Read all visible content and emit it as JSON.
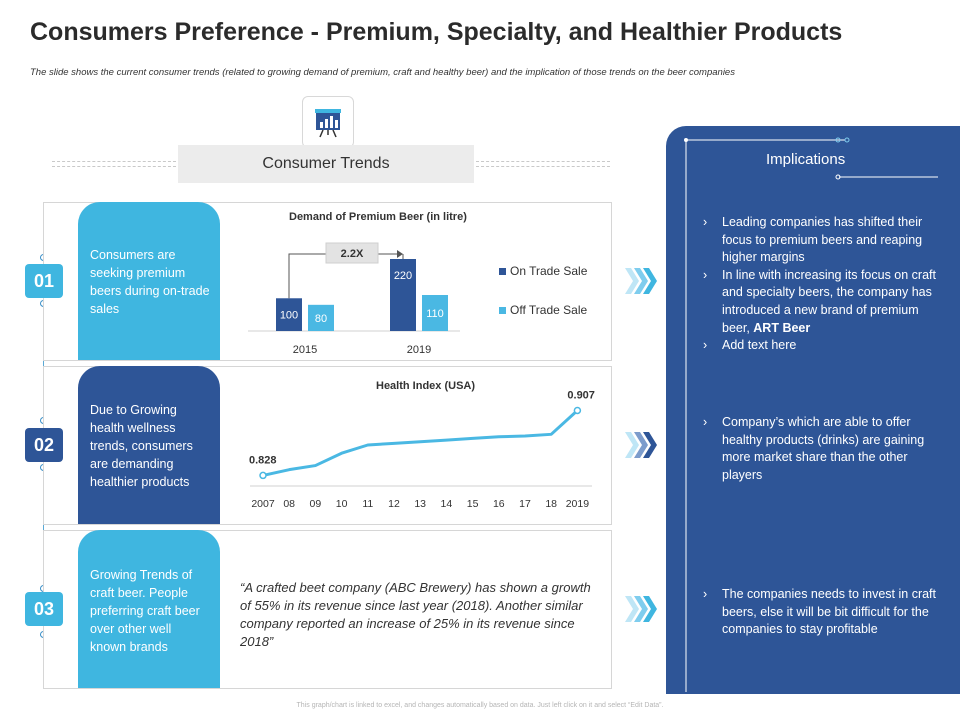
{
  "header": {
    "title": "Consumers Preference - Premium, Specialty, and Healthier Products",
    "subtitle": "The slide shows the current consumer trends (related to growing demand of premium, craft and healthy beer) and the implication of those trends on the beer companies"
  },
  "trends": {
    "heading": "Consumer Trends",
    "icon": "presentation-board-icon"
  },
  "rows": [
    {
      "badge": "01",
      "text": "Consumers are seeking premium beers during on-trade sales"
    },
    {
      "badge": "02",
      "text": "Due to Growing health wellness trends, consumers are demanding healthier products"
    },
    {
      "badge": "03",
      "text": "Growing Trends of craft beer. People preferring craft beer over other well known brands"
    }
  ],
  "quote": "“A crafted beet company (ABC Brewery) has shown a growth of 55% in its revenue since last year (2018). Another similar company reported an increase of 25% in its revenue since 2018”",
  "implications": {
    "title": "Implications",
    "group1": [
      {
        "text": "Leading companies has shifted their focus to premium beers and reaping higher margins"
      },
      {
        "text": "In line with increasing its focus on craft and specialty beers, the company has introduced a new brand of premium beer, ",
        "bold": "ART Beer"
      },
      {
        "text": "Add text here"
      }
    ],
    "group2": [
      {
        "text": "Company’s which are able to offer healthy products (drinks) are gaining more market share than the other players"
      }
    ],
    "group3": [
      {
        "text": "The companies needs to invest in craft beers, else it will be bit difficult for the companies to stay profitable"
      }
    ]
  },
  "footer": "This graph/chart is linked to excel, and changes automatically based on data. Just left click on it and select “Edit Data”.",
  "colors": {
    "light_blue": "#3fb6e0",
    "dark_blue": "#2e5597",
    "bar_on_trade": "#2e5597",
    "bar_off_trade": "#4ab8e3",
    "line": "#4ab8e3"
  },
  "chart_data": [
    {
      "type": "bar",
      "title": "Demand of Premium Beer (in litre)",
      "categories": [
        "2015",
        "2019"
      ],
      "series": [
        {
          "name": "On Trade Sale",
          "values": [
            100,
            220
          ]
        },
        {
          "name": "Off Trade Sale",
          "values": [
            80,
            110
          ]
        }
      ],
      "annotations": [
        "2.2X"
      ],
      "legend": "right",
      "grid": false
    },
    {
      "type": "line",
      "title": "Health Index (USA)",
      "x": [
        "2007",
        "08",
        "09",
        "10",
        "11",
        "12",
        "13",
        "14",
        "15",
        "16",
        "17",
        "18",
        "2019"
      ],
      "values": [
        0.828,
        0.835,
        0.84,
        0.855,
        0.865,
        0.867,
        0.869,
        0.871,
        0.873,
        0.875,
        0.876,
        0.878,
        0.907
      ],
      "labels": [
        "0.828",
        "0.907"
      ],
      "grid": false
    }
  ]
}
